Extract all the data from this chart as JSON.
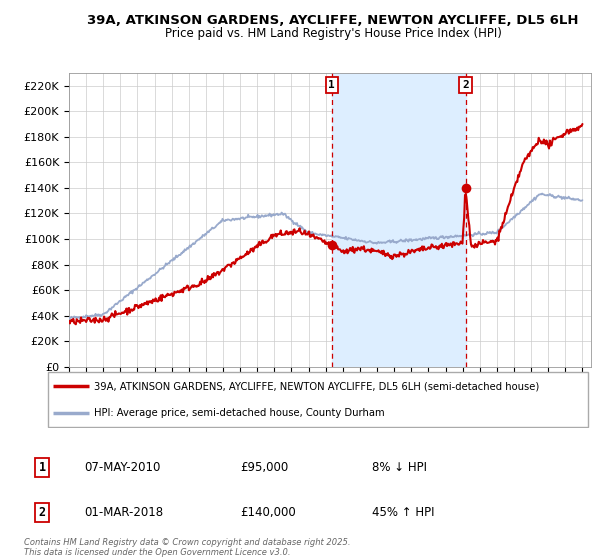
{
  "title_line1": "39A, ATKINSON GARDENS, AYCLIFFE, NEWTON AYCLIFFE, DL5 6LH",
  "title_line2": "Price paid vs. HM Land Registry's House Price Index (HPI)",
  "ylim": [
    0,
    230000
  ],
  "yticks": [
    0,
    20000,
    40000,
    60000,
    80000,
    100000,
    120000,
    140000,
    160000,
    180000,
    200000,
    220000
  ],
  "ytick_labels": [
    "£0",
    "£20K",
    "£40K",
    "£60K",
    "£80K",
    "£100K",
    "£120K",
    "£140K",
    "£160K",
    "£180K",
    "£200K",
    "£220K"
  ],
  "x_start_year": 1995,
  "x_end_year": 2025,
  "marker1_date": 2010.35,
  "marker1_price": 95000,
  "marker1_label": "1",
  "marker1_text": "07-MAY-2010",
  "marker1_price_text": "£95,000",
  "marker1_hpi_text": "8% ↓ HPI",
  "marker2_date": 2018.17,
  "marker2_price": 140000,
  "marker2_label": "2",
  "marker2_text": "01-MAR-2018",
  "marker2_price_text": "£140,000",
  "marker2_hpi_text": "45% ↑ HPI",
  "bg_color": "#ffffff",
  "plot_bg_color": "#ffffff",
  "grid_color": "#cccccc",
  "red_line_color": "#cc0000",
  "blue_line_color": "#99aacc",
  "shaded_region_color": "#ddeeff",
  "legend_label_red": "39A, ATKINSON GARDENS, AYCLIFFE, NEWTON AYCLIFFE, DL5 6LH (semi-detached house)",
  "legend_label_blue": "HPI: Average price, semi-detached house, County Durham",
  "footer_text": "Contains HM Land Registry data © Crown copyright and database right 2025.\nThis data is licensed under the Open Government Licence v3.0."
}
